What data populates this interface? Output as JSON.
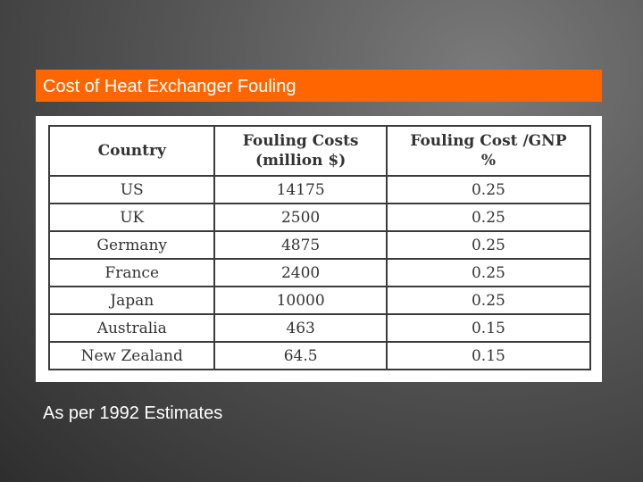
{
  "title": "Cost of Heat Exchanger Fouling",
  "table": {
    "header": [
      [
        "Country"
      ],
      [
        "Fouling Costs",
        "(million $)"
      ],
      [
        "Fouling Cost /GNP",
        "%"
      ]
    ],
    "rows": [
      [
        "US",
        "14175",
        "0.25"
      ],
      [
        "UK",
        "2500",
        "0.25"
      ],
      [
        "Germany",
        "4875",
        "0.25"
      ],
      [
        "France",
        "2400",
        "0.25"
      ],
      [
        "Japan",
        "10000",
        "0.25"
      ],
      [
        "Australia",
        "463",
        "0.15"
      ],
      [
        "New Zealand",
        "64.5",
        "0.15"
      ]
    ]
  },
  "footnote": "As per 1992 Estimates"
}
